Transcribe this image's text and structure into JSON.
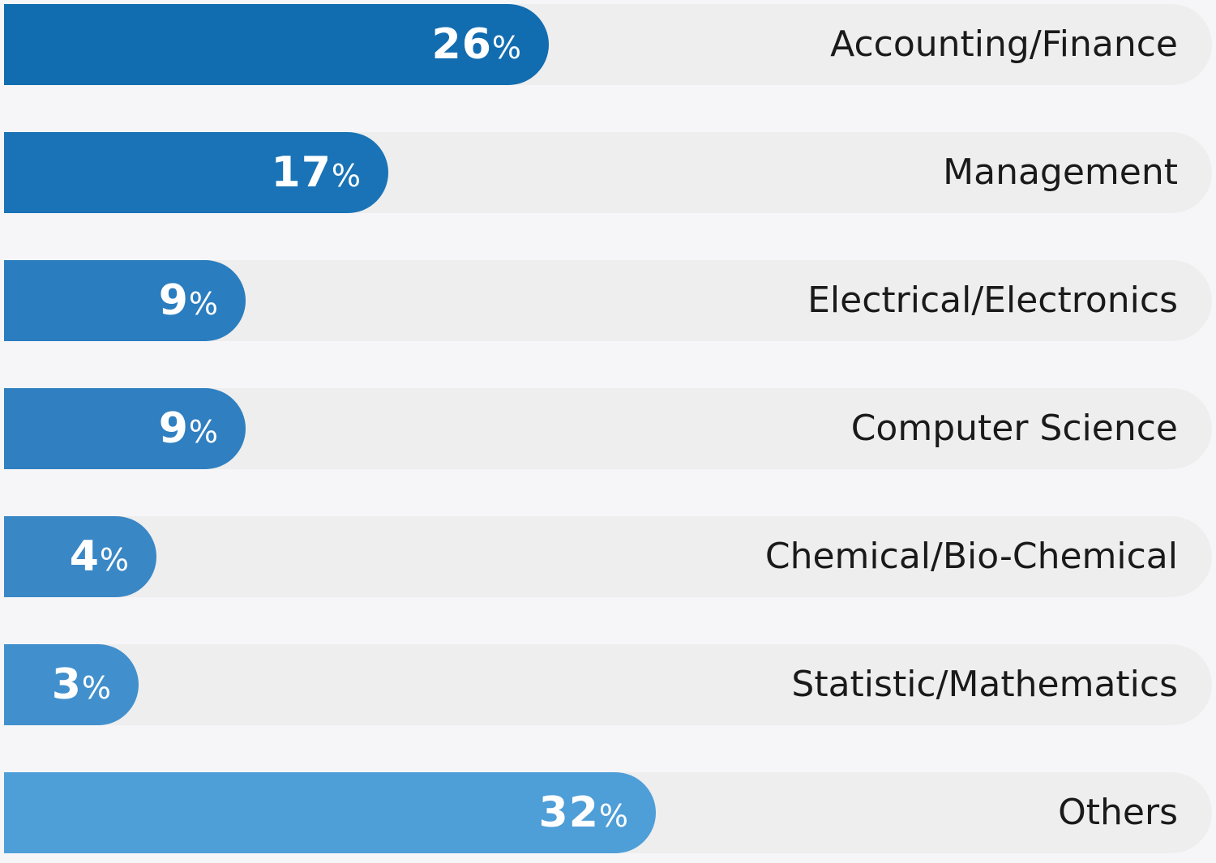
{
  "chart_data": {
    "type": "bar",
    "orientation": "horizontal",
    "categories": [
      "Accounting/Finance",
      "Management",
      "Electrical/Electronics",
      "Computer Science",
      "Chemical/Bio-Chemical",
      "Statistic/Mathematics",
      "Others"
    ],
    "values": [
      26,
      17,
      9,
      9,
      4,
      3,
      32
    ],
    "value_labels": [
      "26",
      "17",
      "9",
      "9",
      "4",
      "3",
      "32"
    ],
    "unit": "%",
    "bar_colors": [
      "#126cb0",
      "#1973b6",
      "#2a7dbe",
      "#307fc0",
      "#3a87c6",
      "#4190cd",
      "#4e9ed8"
    ],
    "track_color": "#eeeeee",
    "background_color": "#f6f6f8",
    "title": "",
    "xlabel": "",
    "ylabel": "",
    "grid": false,
    "legend": "none"
  }
}
